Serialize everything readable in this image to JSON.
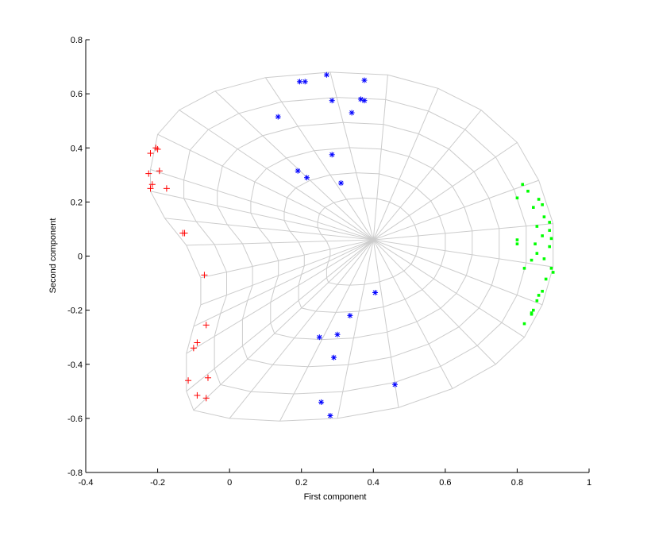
{
  "chart_data": {
    "type": "scatter",
    "title": "",
    "xlabel": "First component",
    "ylabel": "Second component",
    "xlim": [
      -0.4,
      1
    ],
    "ylim": [
      -0.8,
      0.8
    ],
    "xticks": [
      -0.4,
      -0.2,
      0,
      0.2,
      0.4,
      0.6,
      0.8,
      1
    ],
    "xtick_labels": [
      "-0.4",
      "-0.2",
      "0",
      "0.2",
      "0.4",
      "0.6",
      "0.8",
      "1"
    ],
    "yticks": [
      -0.8,
      -0.6,
      -0.4,
      -0.2,
      0,
      0.2,
      0.4,
      0.6,
      0.8
    ],
    "ytick_labels": [
      "-0.8",
      "-0.6",
      "-0.4",
      "-0.2",
      "0",
      "0.2",
      "0.4",
      "0.6",
      "0.8"
    ],
    "grid": false,
    "legend": "none",
    "surface": {
      "description_color": "#cccccc",
      "outline": [
        [
          -0.22,
          0.32
        ],
        [
          -0.2,
          0.45
        ],
        [
          -0.14,
          0.54
        ],
        [
          -0.04,
          0.61
        ],
        [
          0.1,
          0.66
        ],
        [
          0.28,
          0.68
        ],
        [
          0.44,
          0.67
        ],
        [
          0.58,
          0.62
        ],
        [
          0.7,
          0.54
        ],
        [
          0.8,
          0.42
        ],
        [
          0.86,
          0.28
        ],
        [
          0.9,
          0.12
        ],
        [
          0.9,
          -0.04
        ],
        [
          0.87,
          -0.18
        ],
        [
          0.82,
          -0.3
        ],
        [
          0.74,
          -0.4
        ],
        [
          0.62,
          -0.49
        ],
        [
          0.47,
          -0.56
        ],
        [
          0.3,
          -0.6
        ],
        [
          0.14,
          -0.61
        ],
        [
          0,
          -0.6
        ],
        [
          -0.1,
          -0.57
        ],
        [
          -0.12,
          -0.5
        ],
        [
          -0.12,
          -0.36
        ],
        [
          -0.1,
          -0.26
        ],
        [
          -0.08,
          -0.18
        ],
        [
          -0.08,
          -0.08
        ],
        [
          -0.12,
          0.04
        ],
        [
          -0.18,
          0.14
        ],
        [
          -0.22,
          0.24
        ]
      ],
      "center": [
        0.4,
        0.06
      ]
    },
    "series": [
      {
        "color": "#ff0000",
        "marker": "+",
        "points": [
          [
            -0.22,
            0.38
          ],
          [
            -0.205,
            0.4
          ],
          [
            -0.2,
            0.395
          ],
          [
            -0.225,
            0.305
          ],
          [
            -0.195,
            0.315
          ],
          [
            -0.215,
            0.265
          ],
          [
            -0.22,
            0.25
          ],
          [
            -0.175,
            0.25
          ],
          [
            -0.13,
            0.085
          ],
          [
            -0.125,
            0.085
          ],
          [
            -0.07,
            -0.07
          ],
          [
            -0.065,
            -0.255
          ],
          [
            -0.09,
            -0.32
          ],
          [
            -0.1,
            -0.34
          ],
          [
            -0.06,
            -0.45
          ],
          [
            -0.115,
            -0.46
          ],
          [
            -0.09,
            -0.515
          ],
          [
            -0.065,
            -0.525
          ]
        ]
      },
      {
        "color": "#0000ff",
        "marker": "*",
        "points": [
          [
            0.27,
            0.67
          ],
          [
            0.195,
            0.645
          ],
          [
            0.21,
            0.645
          ],
          [
            0.375,
            0.65
          ],
          [
            0.285,
            0.575
          ],
          [
            0.365,
            0.58
          ],
          [
            0.375,
            0.575
          ],
          [
            0.34,
            0.53
          ],
          [
            0.135,
            0.515
          ],
          [
            0.285,
            0.375
          ],
          [
            0.19,
            0.315
          ],
          [
            0.215,
            0.29
          ],
          [
            0.31,
            0.27
          ],
          [
            0.405,
            -0.135
          ],
          [
            0.335,
            -0.22
          ],
          [
            0.3,
            -0.29
          ],
          [
            0.25,
            -0.3
          ],
          [
            0.29,
            -0.375
          ],
          [
            0.46,
            -0.475
          ],
          [
            0.255,
            -0.54
          ],
          [
            0.28,
            -0.59
          ]
        ]
      },
      {
        "color": "#00ff00",
        "marker": "dot",
        "points": [
          [
            0.8,
            0.215
          ],
          [
            0.815,
            0.265
          ],
          [
            0.83,
            0.24
          ],
          [
            0.86,
            0.21
          ],
          [
            0.87,
            0.19
          ],
          [
            0.845,
            0.18
          ],
          [
            0.875,
            0.145
          ],
          [
            0.89,
            0.125
          ],
          [
            0.855,
            0.11
          ],
          [
            0.89,
            0.095
          ],
          [
            0.8,
            0.06
          ],
          [
            0.87,
            0.075
          ],
          [
            0.895,
            0.065
          ],
          [
            0.85,
            0.045
          ],
          [
            0.8,
            0.045
          ],
          [
            0.89,
            0.035
          ],
          [
            0.855,
            0.01
          ],
          [
            0.875,
            -0.01
          ],
          [
            0.84,
            -0.015
          ],
          [
            0.82,
            -0.045
          ],
          [
            0.895,
            -0.045
          ],
          [
            0.9,
            -0.06
          ],
          [
            0.88,
            -0.085
          ],
          [
            0.87,
            -0.13
          ],
          [
            0.86,
            -0.145
          ],
          [
            0.855,
            -0.165
          ],
          [
            0.845,
            -0.2
          ],
          [
            0.84,
            -0.21
          ],
          [
            0.84,
            -0.215
          ],
          [
            0.82,
            -0.25
          ]
        ]
      }
    ]
  }
}
